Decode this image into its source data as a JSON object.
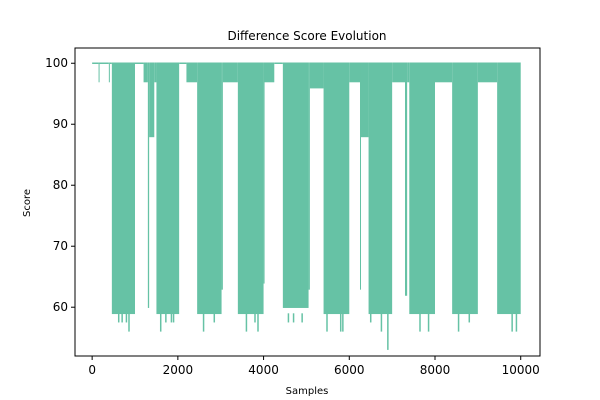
{
  "chart_data": {
    "type": "line",
    "title": "Difference Score Evolution",
    "xlabel": "Samples",
    "ylabel": "Score",
    "xlim": [
      -400,
      10450
    ],
    "ylim": [
      52,
      102.5
    ],
    "x_ticks": [
      0,
      2000,
      4000,
      6000,
      8000,
      10000
    ],
    "y_ticks": [
      60,
      70,
      80,
      90,
      100
    ],
    "grid": false,
    "legend": "none",
    "color": "#66c2a5",
    "series": [
      {
        "sampling": "each segment spans [x_start, x_end] in samples; the score oscillates rapidly between y_high and y_low within the segment",
        "segments": [
          {
            "x_start": 0,
            "x_end": 150,
            "y_high": 100,
            "y_low": 100
          },
          {
            "x_start": 150,
            "x_end": 170,
            "y_high": 100,
            "y_low": 97
          },
          {
            "x_start": 170,
            "x_end": 390,
            "y_high": 100,
            "y_low": 100
          },
          {
            "x_start": 390,
            "x_end": 410,
            "y_high": 100,
            "y_low": 97
          },
          {
            "x_start": 410,
            "x_end": 460,
            "y_high": 100,
            "y_low": 100
          },
          {
            "x_start": 460,
            "x_end": 1000,
            "y_high": 100,
            "y_low": 59
          },
          {
            "x_start": 1000,
            "x_end": 1200,
            "y_high": 100,
            "y_low": 100
          },
          {
            "x_start": 1200,
            "x_end": 1300,
            "y_high": 100,
            "y_low": 97
          },
          {
            "x_start": 1300,
            "x_end": 1330,
            "y_high": 100,
            "y_low": 60
          },
          {
            "x_start": 1330,
            "x_end": 1450,
            "y_high": 100,
            "y_low": 88
          },
          {
            "x_start": 1450,
            "x_end": 1500,
            "y_high": 100,
            "y_low": 97
          },
          {
            "x_start": 1500,
            "x_end": 2030,
            "y_high": 100,
            "y_low": 59
          },
          {
            "x_start": 2030,
            "x_end": 2200,
            "y_high": 100,
            "y_low": 100
          },
          {
            "x_start": 2200,
            "x_end": 2450,
            "y_high": 100,
            "y_low": 97
          },
          {
            "x_start": 2450,
            "x_end": 3020,
            "y_high": 100,
            "y_low": 59
          },
          {
            "x_start": 3020,
            "x_end": 3050,
            "y_high": 100,
            "y_low": 63
          },
          {
            "x_start": 3050,
            "x_end": 3400,
            "y_high": 100,
            "y_low": 97
          },
          {
            "x_start": 3400,
            "x_end": 4000,
            "y_high": 100,
            "y_low": 59
          },
          {
            "x_start": 4000,
            "x_end": 4020,
            "y_high": 100,
            "y_low": 64
          },
          {
            "x_start": 4020,
            "x_end": 4250,
            "y_high": 100,
            "y_low": 97
          },
          {
            "x_start": 4250,
            "x_end": 4450,
            "y_high": 100,
            "y_low": 100
          },
          {
            "x_start": 4450,
            "x_end": 5050,
            "y_high": 100,
            "y_low": 60
          },
          {
            "x_start": 5050,
            "x_end": 5080,
            "y_high": 100,
            "y_low": 63
          },
          {
            "x_start": 5080,
            "x_end": 5400,
            "y_high": 100,
            "y_low": 96
          },
          {
            "x_start": 5400,
            "x_end": 6000,
            "y_high": 100,
            "y_low": 59
          },
          {
            "x_start": 6000,
            "x_end": 6250,
            "y_high": 100,
            "y_low": 97
          },
          {
            "x_start": 6250,
            "x_end": 6270,
            "y_high": 100,
            "y_low": 63
          },
          {
            "x_start": 6270,
            "x_end": 6450,
            "y_high": 100,
            "y_low": 88
          },
          {
            "x_start": 6450,
            "x_end": 7000,
            "y_high": 100,
            "y_low": 59
          },
          {
            "x_start": 7000,
            "x_end": 7300,
            "y_high": 100,
            "y_low": 97
          },
          {
            "x_start": 7300,
            "x_end": 7350,
            "y_high": 100,
            "y_low": 62
          },
          {
            "x_start": 7350,
            "x_end": 7400,
            "y_high": 100,
            "y_low": 97
          },
          {
            "x_start": 7400,
            "x_end": 8000,
            "y_high": 100,
            "y_low": 59
          },
          {
            "x_start": 8000,
            "x_end": 8400,
            "y_high": 100,
            "y_low": 97
          },
          {
            "x_start": 8400,
            "x_end": 9000,
            "y_high": 100,
            "y_low": 59
          },
          {
            "x_start": 9000,
            "x_end": 9450,
            "y_high": 100,
            "y_low": 97
          },
          {
            "x_start": 9450,
            "x_end": 10000,
            "y_high": 100,
            "y_low": 59
          }
        ],
        "spikes": [
          {
            "x": 620,
            "y": 57.5
          },
          {
            "x": 700,
            "y": 57.5
          },
          {
            "x": 800,
            "y": 57.5
          },
          {
            "x": 860,
            "y": 56
          },
          {
            "x": 1600,
            "y": 56
          },
          {
            "x": 1720,
            "y": 57.5
          },
          {
            "x": 1850,
            "y": 57.5
          },
          {
            "x": 1900,
            "y": 57.5
          },
          {
            "x": 2600,
            "y": 56
          },
          {
            "x": 2850,
            "y": 57.5
          },
          {
            "x": 3600,
            "y": 56
          },
          {
            "x": 3800,
            "y": 57.5
          },
          {
            "x": 3870,
            "y": 56
          },
          {
            "x": 4580,
            "y": 57.5
          },
          {
            "x": 4700,
            "y": 57.5
          },
          {
            "x": 4900,
            "y": 57.5
          },
          {
            "x": 5480,
            "y": 56
          },
          {
            "x": 5800,
            "y": 56
          },
          {
            "x": 5850,
            "y": 56
          },
          {
            "x": 6500,
            "y": 57.5
          },
          {
            "x": 6750,
            "y": 56
          },
          {
            "x": 6900,
            "y": 53
          },
          {
            "x": 7650,
            "y": 56
          },
          {
            "x": 7850,
            "y": 56
          },
          {
            "x": 8550,
            "y": 56
          },
          {
            "x": 8800,
            "y": 57.5
          },
          {
            "x": 9800,
            "y": 56
          },
          {
            "x": 9900,
            "y": 56
          }
        ]
      }
    ]
  }
}
